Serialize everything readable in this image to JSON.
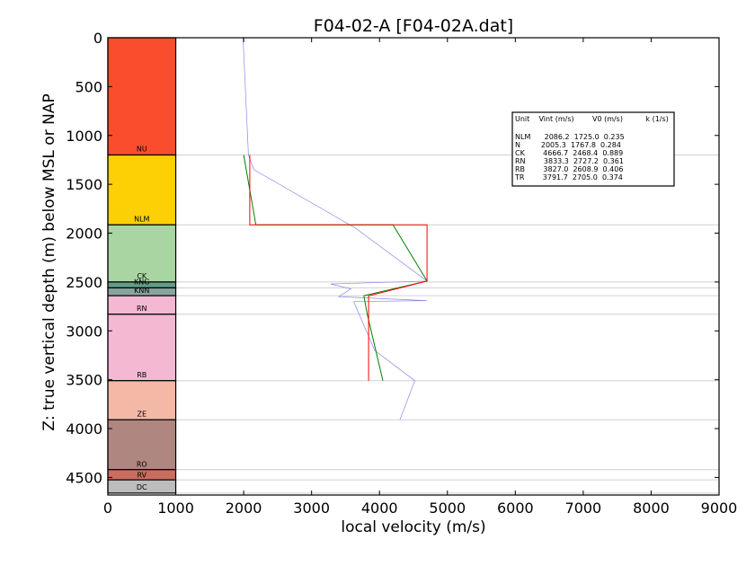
{
  "chart_data": {
    "type": "line",
    "title": "F04-02-A [F04-02A.dat]",
    "xlabel": "local velocity (m/s)",
    "ylabel": "Z: true vertical depth (m) below MSL or NAP",
    "xlim": [
      0,
      9000
    ],
    "ylim": [
      4680,
      0
    ],
    "y_inverted": true,
    "xticks": [
      "0",
      "1000",
      "2000",
      "3000",
      "4000",
      "5000",
      "6000",
      "7000",
      "8000",
      "9000"
    ],
    "yticks": [
      "0",
      "500",
      "1000",
      "1500",
      "2000",
      "2500",
      "3000",
      "3500",
      "4000",
      "4500"
    ],
    "xtick_values": [
      0,
      1000,
      2000,
      3000,
      4000,
      5000,
      6000,
      7000,
      8000,
      9000
    ],
    "ytick_values": [
      0,
      500,
      1000,
      1500,
      2000,
      2500,
      3000,
      3500,
      4000,
      4500
    ],
    "units": [
      {
        "name": "NU",
        "top": 0,
        "base": 1200,
        "color": "#fa4d2d",
        "label_depth": 1165
      },
      {
        "name": "NLM",
        "top": 1200,
        "base": 1915,
        "color": "#fcd004",
        "label_depth": 1880
      },
      {
        "name": "CK",
        "top": 1915,
        "base": 2500,
        "color": "#a8d5a1",
        "label_depth": 2465
      },
      {
        "name": "KNG",
        "top": 2500,
        "base": 2560,
        "color": "#649b89",
        "label_depth": 2525
      },
      {
        "name": "KNN",
        "top": 2560,
        "base": 2640,
        "color": "#85a59d",
        "label_depth": 2610
      },
      {
        "name": "RN",
        "top": 2640,
        "base": 2830,
        "color": "#f4b8d3",
        "label_depth": 2795
      },
      {
        "name": "RB",
        "top": 2830,
        "base": 3510,
        "color": "#f4b8d3",
        "label_depth": 3475
      },
      {
        "name": "ZE",
        "top": 3510,
        "base": 3910,
        "color": "#f4b9a6",
        "label_depth": 3875
      },
      {
        "name": "RO",
        "top": 3910,
        "base": 4420,
        "color": "#b08680",
        "label_depth": 4390
      },
      {
        "name": "RV",
        "top": 4420,
        "base": 4525,
        "color": "#c96d5e",
        "label_depth": 4500
      },
      {
        "name": "DC",
        "top": 4525,
        "base": 4660,
        "color": "#bdbdbd",
        "label_depth": 4625
      }
    ],
    "boundary_lines": [
      1200,
      1915,
      2500,
      2560,
      2640,
      2830,
      3510,
      3910,
      4420,
      4525,
      4660
    ],
    "series": [
      {
        "color": "#8a8ae8",
        "points": [
          [
            1990,
            0
          ],
          [
            2070,
            1200
          ],
          [
            2150,
            1350
          ],
          [
            3650,
            1950
          ],
          [
            4700,
            2490
          ],
          [
            3280,
            2520
          ],
          [
            3580,
            2570
          ],
          [
            3400,
            2650
          ],
          [
            4700,
            2690
          ],
          [
            3620,
            2700
          ],
          [
            3930,
            3200
          ],
          [
            4520,
            3510
          ],
          [
            4300,
            3910
          ]
        ]
      },
      {
        "color": "#008000",
        "points": [
          [
            2000,
            1200
          ],
          [
            2180,
            1915
          ],
          [
            4200,
            1915
          ],
          [
            4700,
            2490
          ],
          [
            3770,
            2640
          ],
          [
            3820,
            2830
          ],
          [
            4050,
            3510
          ]
        ]
      },
      {
        "color": "#ff0000",
        "points": [
          [
            2090,
            1200
          ],
          [
            2090,
            1915
          ],
          [
            4700,
            1915
          ],
          [
            4700,
            2490
          ],
          [
            3850,
            2640
          ],
          [
            3840,
            2640
          ],
          [
            3840,
            3510
          ]
        ]
      }
    ],
    "legend": {
      "header": "Unit    Vint (m/s)        V0 (m/s)          k (1/s)",
      "rows": [
        "NLM      2086.2  1725.0  0.235",
        "N         2005.3  1767.8  0.284",
        "CK        4666.7  2468.4  0.889",
        "RN        3833.3  2727.2  0.361",
        "RB        3827.0  2608.9  0.406",
        "TR        3791.7  2705.0  0.374"
      ],
      "placement": "top-right"
    }
  }
}
